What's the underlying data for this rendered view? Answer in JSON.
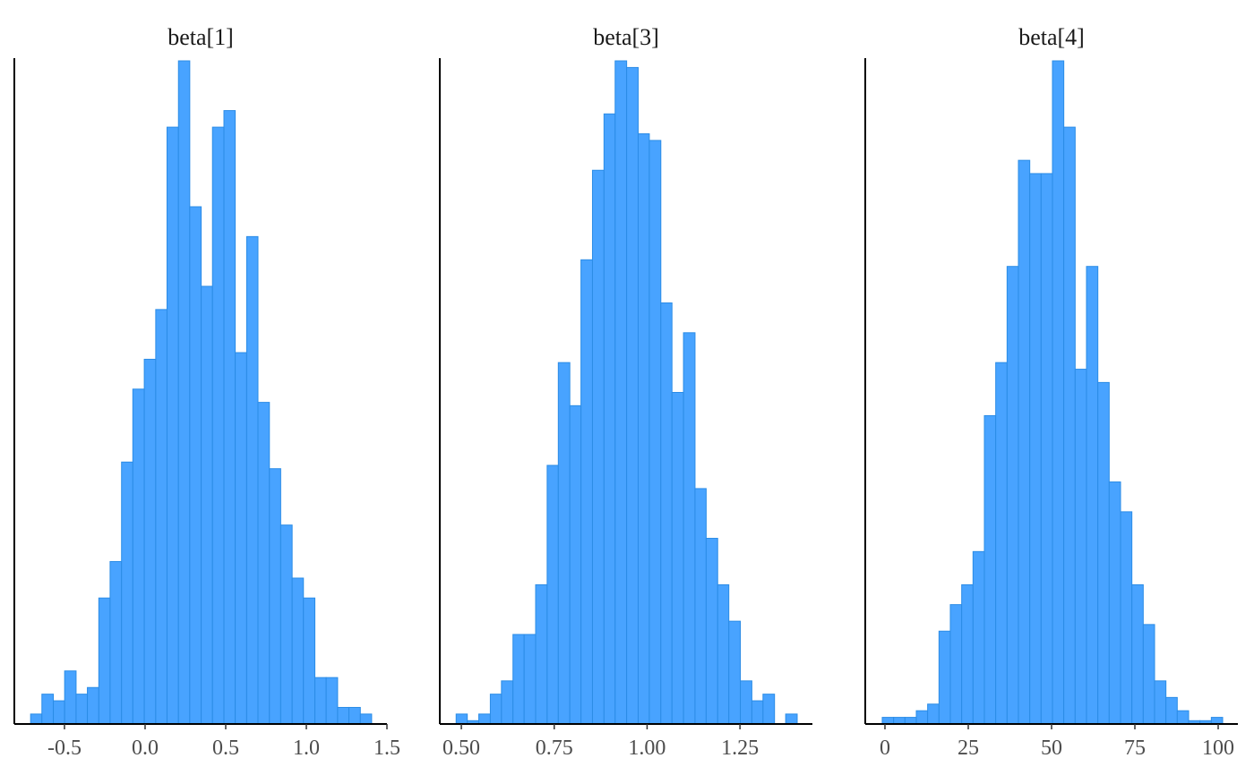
{
  "chart_data": [
    {
      "type": "histogram",
      "title": "beta[1]",
      "color": "#48a3ff",
      "edgecolor": "#2b8ce6",
      "bins": [
        -0.71,
        -0.64,
        -0.569,
        -0.499,
        -0.428,
        -0.358,
        -0.287,
        -0.217,
        -0.146,
        -0.076,
        -0.005,
        0.066,
        0.136,
        0.207,
        0.277,
        0.348,
        0.418,
        0.489,
        0.559,
        0.63,
        0.7,
        0.771,
        0.841,
        0.912,
        0.982,
        1.053,
        1.123,
        1.194,
        1.264,
        1.335,
        1.405
      ],
      "values": [
        3,
        9,
        7,
        16,
        9,
        11,
        38,
        49,
        79,
        101,
        110,
        125,
        180,
        200,
        156,
        132,
        180,
        185,
        112,
        147,
        97,
        77,
        60,
        44,
        38,
        14,
        14,
        5,
        5,
        3
      ],
      "xlim": [
        -0.811,
        1.5
      ],
      "ylim": [
        0,
        200
      ],
      "xticks": [
        -0.5,
        {
          "value": 0,
          "label": "0.0"
        },
        0.5,
        {
          "value": 1,
          "label": "1.0"
        },
        1.5
      ]
    },
    {
      "type": "histogram",
      "title": "beta[3]",
      "color": "#48a3ff",
      "edgecolor": "#2b8ce6",
      "bins": [
        0.486,
        0.516,
        0.547,
        0.578,
        0.608,
        0.639,
        0.669,
        0.7,
        0.731,
        0.761,
        0.792,
        0.822,
        0.853,
        0.884,
        0.914,
        0.945,
        0.976,
        1.006,
        1.037,
        1.067,
        1.098,
        1.129,
        1.159,
        1.19,
        1.22,
        1.251,
        1.282,
        1.312,
        1.343,
        1.373,
        1.404
      ],
      "values": [
        3,
        1,
        3,
        9,
        13,
        27,
        27,
        42,
        78,
        109,
        96,
        140,
        167,
        184,
        200,
        198,
        178,
        176,
        127,
        100,
        118,
        71,
        56,
        42,
        31,
        13,
        7,
        9,
        0,
        3
      ],
      "xlim": [
        0.442,
        1.445
      ],
      "ylim": [
        0,
        200
      ],
      "xticks": [
        {
          "value": 0.5,
          "label": "0.50"
        },
        0.75,
        {
          "value": 1,
          "label": "1.00"
        },
        1.25
      ]
    },
    {
      "type": "histogram",
      "title": "beta[4]",
      "color": "#48a3ff",
      "edgecolor": "#2b8ce6",
      "bins": [
        -0.81,
        2.6,
        6.0,
        9.41,
        12.81,
        16.22,
        19.62,
        23.03,
        26.43,
        29.84,
        33.24,
        36.65,
        40.05,
        43.46,
        46.86,
        50.27,
        53.67,
        57.08,
        60.48,
        63.89,
        67.29,
        70.7,
        74.1,
        77.51,
        80.91,
        84.32,
        87.72,
        91.13,
        94.53,
        97.94,
        101.34
      ],
      "values": [
        2,
        2,
        2,
        4,
        6,
        28,
        36,
        42,
        52,
        93,
        109,
        138,
        170,
        166,
        166,
        200,
        180,
        107,
        138,
        103,
        73,
        64,
        42,
        30,
        13,
        8,
        4,
        1,
        1,
        2
      ],
      "xlim": [
        -5.91,
        105.91
      ],
      "ylim": [
        0,
        200
      ],
      "xticks": [
        0,
        25,
        50,
        75,
        100
      ]
    }
  ]
}
